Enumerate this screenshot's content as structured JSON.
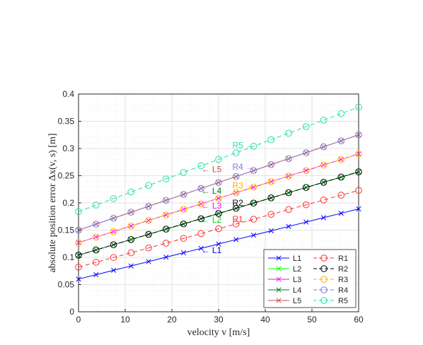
{
  "chart_data": {
    "type": "line",
    "xlabel": "velocity v [m/s]",
    "ylabel": "absolute position error Δx(v, s) [m]",
    "xlim": [
      0,
      60
    ],
    "ylim": [
      0,
      0.4
    ],
    "xticks": [
      0,
      10,
      20,
      30,
      40,
      50,
      60
    ],
    "yticks": [
      0,
      0.05,
      0.1,
      0.15,
      0.2,
      0.25,
      0.3,
      0.35,
      0.4
    ],
    "xtick_labels": [
      "0",
      "10",
      "20",
      "30",
      "40",
      "50",
      "60"
    ],
    "ytick_labels": [
      "0",
      "0.05",
      "0.1",
      "0.15",
      "0.2",
      "0.25",
      "0.3",
      "0.35",
      "0.4"
    ],
    "grid": "major and minor",
    "legend_position": "bottom-right",
    "legend_columns": 2,
    "x": [
      0,
      3.75,
      7.5,
      11.25,
      15,
      18.75,
      22.5,
      26.25,
      30,
      33.75,
      37.5,
      41.25,
      45,
      48.75,
      52.5,
      56.25,
      60
    ],
    "series": [
      {
        "name": "L1",
        "color": "#0000ff",
        "linestyle": "solid",
        "marker": "x",
        "y_start": 0.06,
        "y_end": 0.189
      },
      {
        "name": "L2",
        "color": "#00ff00",
        "linestyle": "solid",
        "marker": "x",
        "y_start": 0.104,
        "y_end": 0.257
      },
      {
        "name": "L3",
        "color": "#ff00ff",
        "linestyle": "solid",
        "marker": "x",
        "y_start": 0.127,
        "y_end": 0.29
      },
      {
        "name": "L4",
        "color": "#007a1f",
        "linestyle": "solid",
        "marker": "x",
        "y_start": 0.104,
        "y_end": 0.257
      },
      {
        "name": "L5",
        "color": "#c0504d",
        "linestyle": "solid",
        "marker": "x",
        "y_start": 0.15,
        "y_end": 0.325
      },
      {
        "name": "R1",
        "color": "#ff3030",
        "linestyle": "dashed",
        "marker": "o",
        "y_start": 0.082,
        "y_end": 0.223
      },
      {
        "name": "R2",
        "color": "#000000",
        "linestyle": "dashed",
        "marker": "o",
        "y_start": 0.104,
        "y_end": 0.257
      },
      {
        "name": "R3",
        "color": "#ffb000",
        "linestyle": "dashed",
        "marker": "o",
        "y_start": 0.127,
        "y_end": 0.29
      },
      {
        "name": "R4",
        "color": "#7b7bde",
        "linestyle": "dashed",
        "marker": "o",
        "y_start": 0.15,
        "y_end": 0.325
      },
      {
        "name": "R5",
        "color": "#20e0b0",
        "linestyle": "dashed",
        "marker": "o",
        "y_start": 0.184,
        "y_end": 0.376
      }
    ],
    "annotations": [
      {
        "series": "L1",
        "text": "L1",
        "arrow": "←",
        "x": 26.3,
        "y": 0.113,
        "color": "#0000ff"
      },
      {
        "series": "L2",
        "text": "L2",
        "arrow": "←",
        "x": 26.3,
        "y": 0.169,
        "color": "#00dd00"
      },
      {
        "series": "L3",
        "text": "L3",
        "arrow": "←",
        "x": 26.3,
        "y": 0.195,
        "color": "#ff00ff"
      },
      {
        "series": "L4",
        "text": "L4",
        "arrow": "←",
        "x": 26.3,
        "y": 0.222,
        "color": "#007a1f"
      },
      {
        "series": "L5",
        "text": "L5",
        "arrow": "←",
        "x": 26.3,
        "y": 0.262,
        "color": "#c0504d"
      },
      {
        "series": "R1",
        "text": "R1",
        "arrow": "→",
        "x": 37.6,
        "y": 0.17,
        "color": "#ff3030"
      },
      {
        "series": "R2",
        "text": "R2",
        "arrow": "→",
        "x": 37.6,
        "y": 0.2,
        "color": "#000000"
      },
      {
        "series": "R3",
        "text": "R3",
        "arrow": "→",
        "x": 37.6,
        "y": 0.232,
        "color": "#ffb000"
      },
      {
        "series": "R4",
        "text": "R4",
        "arrow": "→",
        "x": 37.6,
        "y": 0.266,
        "color": "#7b7bde"
      },
      {
        "series": "R5",
        "text": "R5",
        "arrow": "→",
        "x": 37.6,
        "y": 0.306,
        "color": "#20e0b0"
      }
    ]
  }
}
